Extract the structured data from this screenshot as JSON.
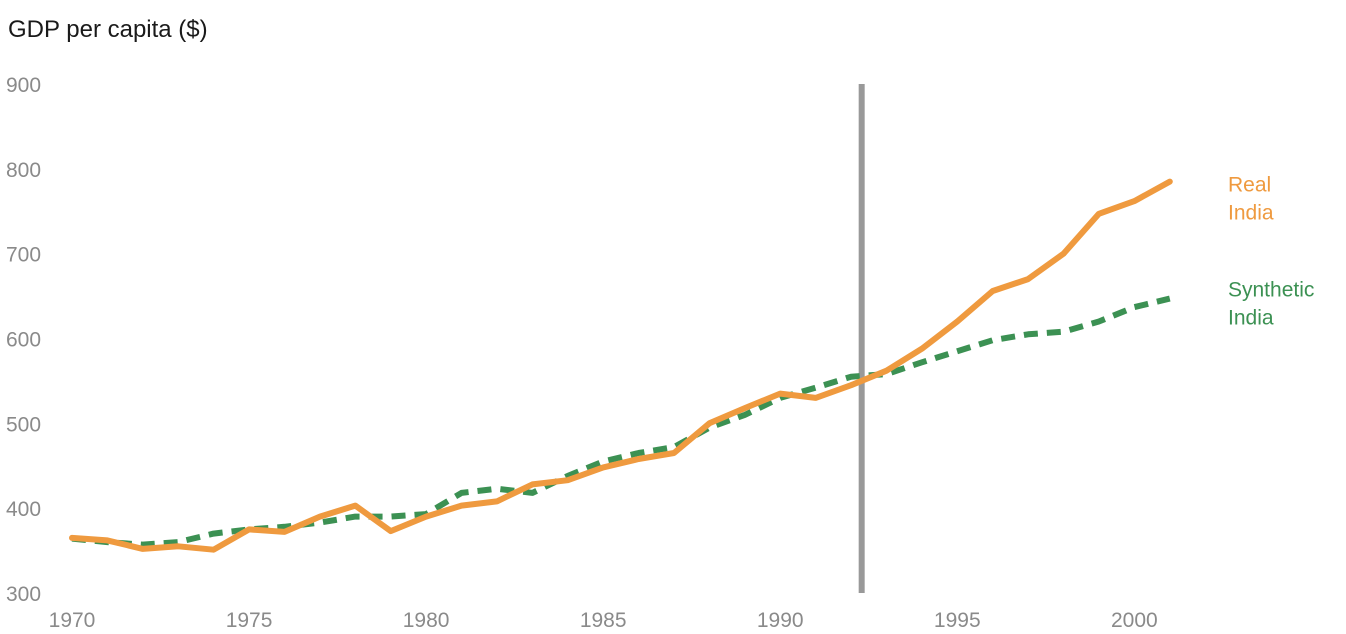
{
  "chart_data": {
    "type": "line",
    "title": "",
    "ylabel": "GDP per capita ($)",
    "xlabel": "",
    "xlim": [
      1970,
      2004
    ],
    "ylim": [
      300,
      900
    ],
    "x_ticks": [
      1970,
      1975,
      1980,
      1985,
      1990,
      1995,
      2000
    ],
    "y_ticks": [
      300,
      400,
      500,
      600,
      700,
      800,
      900
    ],
    "grid": false,
    "reference_line_x": 1992.3,
    "series": [
      {
        "name": "Real India",
        "label_lines": [
          "Real",
          "India"
        ],
        "style": "solid",
        "color": "#ef9a3f",
        "x": [
          1970,
          1971,
          1972,
          1973,
          1974,
          1975,
          1976,
          1977,
          1978,
          1979,
          1980,
          1981,
          1982,
          1983,
          1984,
          1985,
          1986,
          1987,
          1988,
          1989,
          1990,
          1991,
          1992,
          1993,
          1994,
          1995,
          1996,
          1997,
          1998,
          1999,
          2000,
          2001
        ],
        "values": [
          365,
          362,
          352,
          355,
          351,
          375,
          372,
          390,
          403,
          373,
          390,
          403,
          408,
          428,
          433,
          448,
          458,
          465,
          500,
          518,
          535,
          530,
          545,
          562,
          588,
          620,
          656,
          670,
          700,
          747,
          762,
          785
        ]
      },
      {
        "name": "Synthetic India",
        "label_lines": [
          "Synthetic",
          "India"
        ],
        "style": "dashed",
        "color": "#3c9153",
        "x": [
          1970,
          1971,
          1972,
          1973,
          1974,
          1975,
          1976,
          1977,
          1978,
          1979,
          1980,
          1981,
          1982,
          1983,
          1984,
          1985,
          1986,
          1987,
          1988,
          1989,
          1990,
          1991,
          1992,
          1993,
          1994,
          1995,
          1996,
          1997,
          1998,
          1999,
          2000,
          2001
        ],
        "values": [
          364,
          360,
          357,
          360,
          370,
          375,
          378,
          383,
          390,
          390,
          393,
          418,
          423,
          418,
          438,
          455,
          465,
          472,
          495,
          510,
          530,
          542,
          555,
          558,
          572,
          585,
          598,
          605,
          608,
          620,
          637,
          647
        ]
      }
    ]
  },
  "colors": {
    "reference_line": "#999999",
    "tick_text": "#8a8a8a",
    "title_text": "#1a1a1a"
  }
}
